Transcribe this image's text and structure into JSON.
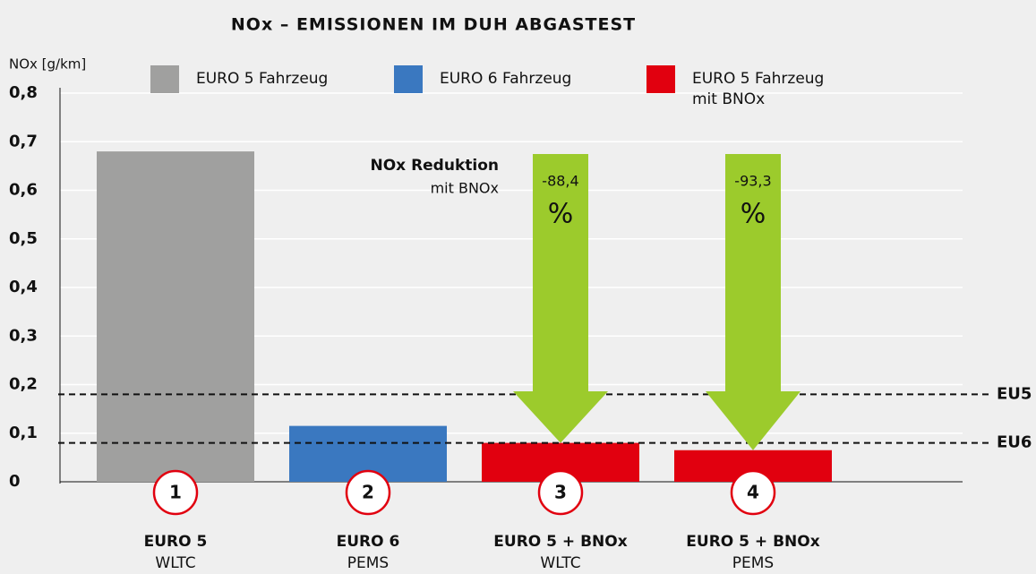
{
  "chart_data": {
    "type": "bar",
    "title": "NOx – EMISSIONEN IM DUH ABGASTEST",
    "y_label": "NOx [g/km]",
    "categories": [
      "EURO 5",
      "EURO 6",
      "EURO 5 + BNOx",
      "EURO 5 + BNOx"
    ],
    "category_sublabels": [
      "WLTC",
      "PEMS",
      "WLTC",
      "PEMS"
    ],
    "category_markers": [
      "1",
      "2",
      "3",
      "4"
    ],
    "values": [
      0.68,
      0.115,
      0.08,
      0.065
    ],
    "colors": [
      "#a0a09f",
      "#3a78c0",
      "#e1000f",
      "#e1000f"
    ],
    "legend": [
      {
        "name": "EURO 5 Fahrzeug",
        "color": "#a0a09f"
      },
      {
        "name": "EURO 6 Fahrzeug",
        "color": "#3a78c0"
      },
      {
        "name": "EURO 5 Fahrzeug mit BNOx",
        "color": "#e1000f"
      }
    ],
    "ylim": [
      0,
      0.8
    ],
    "yticks": [
      0,
      {
        "value": 0.1,
        "label": "0,1"
      },
      {
        "value": 0.2,
        "label": "0,2"
      },
      {
        "value": 0.3,
        "label": "0,3"
      },
      {
        "value": 0.4,
        "label": "0,4"
      },
      {
        "value": 0.5,
        "label": "0,5"
      },
      {
        "value": 0.6,
        "label": "0,6"
      },
      {
        "value": 0.7,
        "label": "0,7"
      },
      {
        "value": 0.8,
        "label": "0,8"
      }
    ],
    "grid": true,
    "reference_lines": [
      {
        "label": "EU5",
        "value": 0.18
      },
      {
        "label": "EU6",
        "value": 0.08
      }
    ],
    "reduction_annotation": {
      "title": "NOx Reduktion",
      "subtitle": "mit BNOx",
      "color": "#9ccb2c"
    },
    "reductions": {
      "category_index": [
        2,
        3
      ],
      "values": [
        -88.4,
        -93.3
      ],
      "value_labels": [
        "-88,4",
        "-93,3"
      ],
      "unit": "%"
    }
  }
}
